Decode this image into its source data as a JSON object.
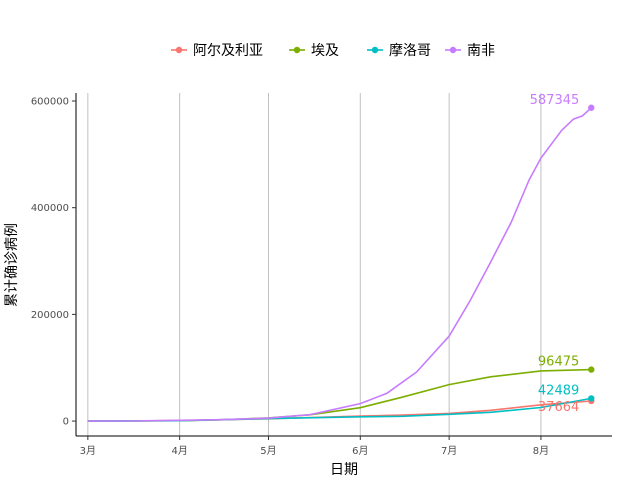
{
  "chart_data": {
    "type": "line",
    "xlabel": "日期",
    "ylabel": "累计确诊病例",
    "x_tick_labels": [
      "3月",
      "4月",
      "5月",
      "6月",
      "7月",
      "8月"
    ],
    "x_tick_dates": [
      "2020-03-01",
      "2020-04-01",
      "2020-05-01",
      "2020-06-01",
      "2020-07-01",
      "2020-08-01"
    ],
    "xlim": [
      "2020-02-26",
      "2020-08-25"
    ],
    "y_ticks": [
      0,
      200000,
      400000,
      600000
    ],
    "ylim": [
      -28000,
      615000
    ],
    "grid": "vertical lines at month ticks",
    "legend_position": "top",
    "series": [
      {
        "name": "阿尔及利亚",
        "color": "#F8766D",
        "end_label": "37664",
        "points": [
          [
            "2020-03-01",
            1
          ],
          [
            "2020-04-01",
            850
          ],
          [
            "2020-05-01",
            4300
          ],
          [
            "2020-06-01",
            9400
          ],
          [
            "2020-06-15",
            11100
          ],
          [
            "2020-07-01",
            14300
          ],
          [
            "2020-07-15",
            20200
          ],
          [
            "2020-08-01",
            30400
          ],
          [
            "2020-08-18",
            37664
          ]
        ]
      },
      {
        "name": "埃及",
        "color": "#7CAE00",
        "end_label": "96475",
        "points": [
          [
            "2020-03-01",
            2
          ],
          [
            "2020-03-15",
            110
          ],
          [
            "2020-04-01",
            710
          ],
          [
            "2020-04-15",
            2350
          ],
          [
            "2020-05-01",
            5900
          ],
          [
            "2020-05-15",
            11700
          ],
          [
            "2020-06-01",
            25000
          ],
          [
            "2020-06-15",
            44500
          ],
          [
            "2020-07-01",
            68300
          ],
          [
            "2020-07-15",
            83000
          ],
          [
            "2020-08-01",
            94100
          ],
          [
            "2020-08-18",
            96475
          ]
        ]
      },
      {
        "name": "摩洛哥",
        "color": "#00BFC4",
        "end_label": "42489",
        "points": [
          [
            "2020-03-01",
            1
          ],
          [
            "2020-04-01",
            650
          ],
          [
            "2020-05-01",
            4600
          ],
          [
            "2020-06-01",
            7900
          ],
          [
            "2020-06-15",
            9000
          ],
          [
            "2020-07-01",
            12600
          ],
          [
            "2020-07-15",
            16500
          ],
          [
            "2020-08-01",
            25500
          ],
          [
            "2020-08-18",
            42489
          ]
        ]
      },
      {
        "name": "南非",
        "color": "#C77CFF",
        "end_label": "587345",
        "points": [
          [
            "2020-03-01",
            0
          ],
          [
            "2020-03-15",
            60
          ],
          [
            "2020-04-01",
            1380
          ],
          [
            "2020-04-15",
            2500
          ],
          [
            "2020-05-01",
            5600
          ],
          [
            "2020-05-15",
            12000
          ],
          [
            "2020-06-01",
            32700
          ],
          [
            "2020-06-10",
            52000
          ],
          [
            "2020-06-20",
            92000
          ],
          [
            "2020-07-01",
            159000
          ],
          [
            "2020-07-08",
            225000
          ],
          [
            "2020-07-15",
            298000
          ],
          [
            "2020-07-22",
            373000
          ],
          [
            "2020-07-28",
            452000
          ],
          [
            "2020-08-01",
            493000
          ],
          [
            "2020-08-08",
            545000
          ],
          [
            "2020-08-12",
            566000
          ],
          [
            "2020-08-15",
            572000
          ],
          [
            "2020-08-18",
            587345
          ]
        ]
      }
    ]
  }
}
